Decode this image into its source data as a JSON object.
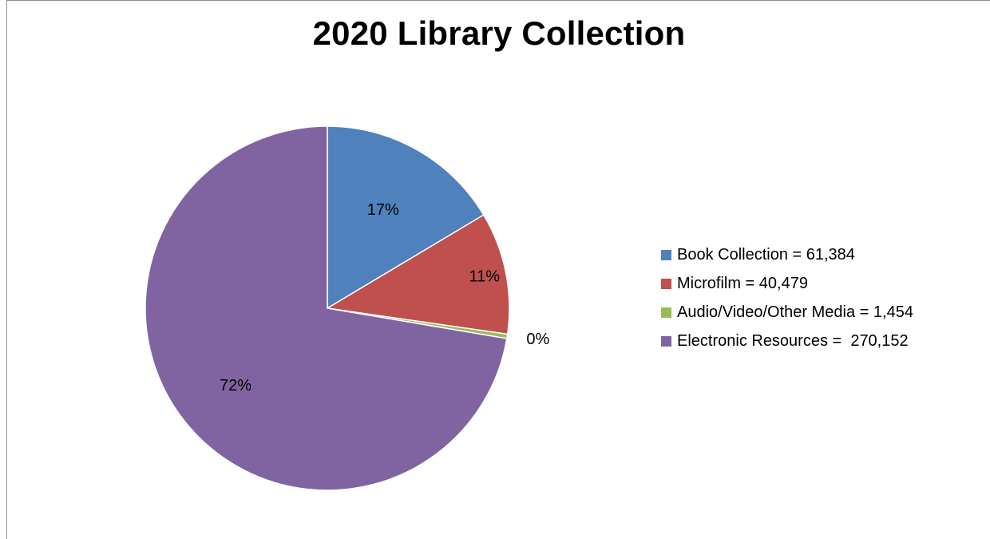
{
  "chart_data": {
    "type": "pie",
    "title": "2020 Library Collection",
    "slices": [
      {
        "label": "Book Collection = 61,384",
        "value": 61384,
        "percent_label": "17%",
        "color": "#4f81bd"
      },
      {
        "label": "Microfilm = 40,479",
        "value": 40479,
        "percent_label": "11%",
        "color": "#c0504d"
      },
      {
        "label": "Audio/Video/Other Media = 1,454",
        "value": 1454,
        "percent_label": "0%",
        "color": "#9bbb59"
      },
      {
        "label": "Electronic Resources =  270,152",
        "value": 270152,
        "percent_label": "72%",
        "color": "#8064a2"
      }
    ],
    "legend_position": "right",
    "start_angle": "12 o'clock",
    "direction": "clockwise"
  }
}
